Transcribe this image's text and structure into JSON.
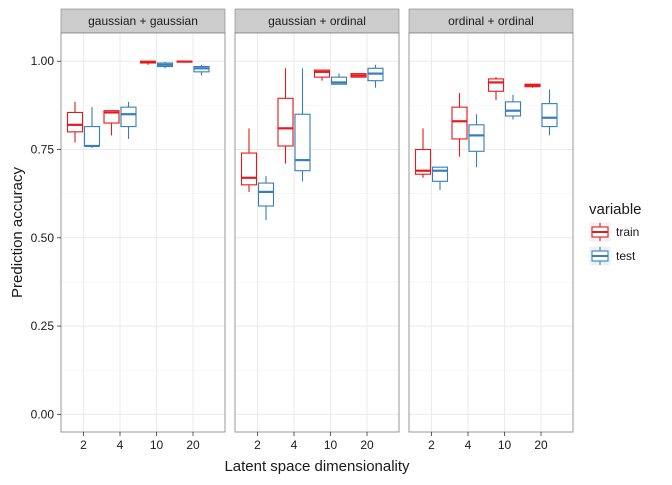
{
  "chart_data": {
    "type": "boxplot",
    "title": "",
    "xlabel": "Latent space dimensionality",
    "ylabel": "Prediction accuracy",
    "ylim": [
      -0.05,
      1.08
    ],
    "yticks": [
      0.0,
      0.25,
      0.5,
      0.75,
      1.0
    ],
    "ytick_labels": [
      "0.00",
      "0.25",
      "0.50",
      "0.75",
      "1.00"
    ],
    "categories": [
      "2",
      "4",
      "10",
      "20"
    ],
    "grid": true,
    "legend": {
      "title": "variable",
      "placement": "right",
      "entries": [
        {
          "name": "train",
          "color": "#e41a1c"
        },
        {
          "name": "test",
          "color": "#377eb8"
        }
      ]
    },
    "series_colors": {
      "train": "#e41a1c",
      "test": "#377eb8"
    },
    "panels": [
      {
        "strip": "gaussian + gaussian",
        "boxes": [
          {
            "category": "2",
            "variable": "train",
            "min": 0.77,
            "q1": 0.8,
            "median": 0.82,
            "q3": 0.855,
            "max": 0.885
          },
          {
            "category": "2",
            "variable": "test",
            "min": 0.755,
            "q1": 0.76,
            "median": 0.76,
            "q3": 0.815,
            "max": 0.87
          },
          {
            "category": "4",
            "variable": "train",
            "min": 0.79,
            "q1": 0.825,
            "median": 0.855,
            "q3": 0.86,
            "max": 0.86
          },
          {
            "category": "4",
            "variable": "test",
            "min": 0.78,
            "q1": 0.815,
            "median": 0.85,
            "q3": 0.87,
            "max": 0.885
          },
          {
            "category": "10",
            "variable": "train",
            "min": 0.99,
            "q1": 0.995,
            "median": 0.998,
            "q3": 1.0,
            "max": 1.0
          },
          {
            "category": "10",
            "variable": "test",
            "min": 0.98,
            "q1": 0.985,
            "median": 0.99,
            "q3": 0.995,
            "max": 0.998
          },
          {
            "category": "20",
            "variable": "train",
            "min": 0.997,
            "q1": 0.998,
            "median": 0.999,
            "q3": 1.0,
            "max": 1.0
          },
          {
            "category": "20",
            "variable": "test",
            "min": 0.96,
            "q1": 0.97,
            "median": 0.98,
            "q3": 0.985,
            "max": 0.99
          }
        ]
      },
      {
        "strip": "gaussian + ordinal",
        "boxes": [
          {
            "category": "2",
            "variable": "train",
            "min": 0.63,
            "q1": 0.65,
            "median": 0.67,
            "q3": 0.74,
            "max": 0.81
          },
          {
            "category": "2",
            "variable": "test",
            "min": 0.55,
            "q1": 0.59,
            "median": 0.63,
            "q3": 0.655,
            "max": 0.675
          },
          {
            "category": "4",
            "variable": "train",
            "min": 0.71,
            "q1": 0.76,
            "median": 0.81,
            "q3": 0.895,
            "max": 0.98
          },
          {
            "category": "4",
            "variable": "test",
            "min": 0.66,
            "q1": 0.69,
            "median": 0.72,
            "q3": 0.85,
            "max": 0.98
          },
          {
            "category": "10",
            "variable": "train",
            "min": 0.945,
            "q1": 0.955,
            "median": 0.97,
            "q3": 0.975,
            "max": 0.975
          },
          {
            "category": "10",
            "variable": "test",
            "min": 0.935,
            "q1": 0.935,
            "median": 0.94,
            "q3": 0.955,
            "max": 0.965
          },
          {
            "category": "20",
            "variable": "train",
            "min": 0.955,
            "q1": 0.955,
            "median": 0.96,
            "q3": 0.965,
            "max": 0.965
          },
          {
            "category": "20",
            "variable": "test",
            "min": 0.925,
            "q1": 0.945,
            "median": 0.965,
            "q3": 0.98,
            "max": 0.99
          }
        ]
      },
      {
        "strip": "ordinal + ordinal",
        "boxes": [
          {
            "category": "2",
            "variable": "train",
            "min": 0.67,
            "q1": 0.68,
            "median": 0.69,
            "q3": 0.75,
            "max": 0.81
          },
          {
            "category": "2",
            "variable": "test",
            "min": 0.635,
            "q1": 0.66,
            "median": 0.69,
            "q3": 0.7,
            "max": 0.7
          },
          {
            "category": "4",
            "variable": "train",
            "min": 0.73,
            "q1": 0.78,
            "median": 0.83,
            "q3": 0.87,
            "max": 0.91
          },
          {
            "category": "4",
            "variable": "test",
            "min": 0.7,
            "q1": 0.745,
            "median": 0.79,
            "q3": 0.82,
            "max": 0.85
          },
          {
            "category": "10",
            "variable": "train",
            "min": 0.89,
            "q1": 0.915,
            "median": 0.94,
            "q3": 0.95,
            "max": 0.955
          },
          {
            "category": "10",
            "variable": "test",
            "min": 0.835,
            "q1": 0.845,
            "median": 0.86,
            "q3": 0.885,
            "max": 0.905
          },
          {
            "category": "20",
            "variable": "train",
            "min": 0.925,
            "q1": 0.928,
            "median": 0.932,
            "q3": 0.935,
            "max": 0.935
          },
          {
            "category": "20",
            "variable": "test",
            "min": 0.79,
            "q1": 0.815,
            "median": 0.84,
            "q3": 0.88,
            "max": 0.92
          }
        ]
      }
    ]
  }
}
